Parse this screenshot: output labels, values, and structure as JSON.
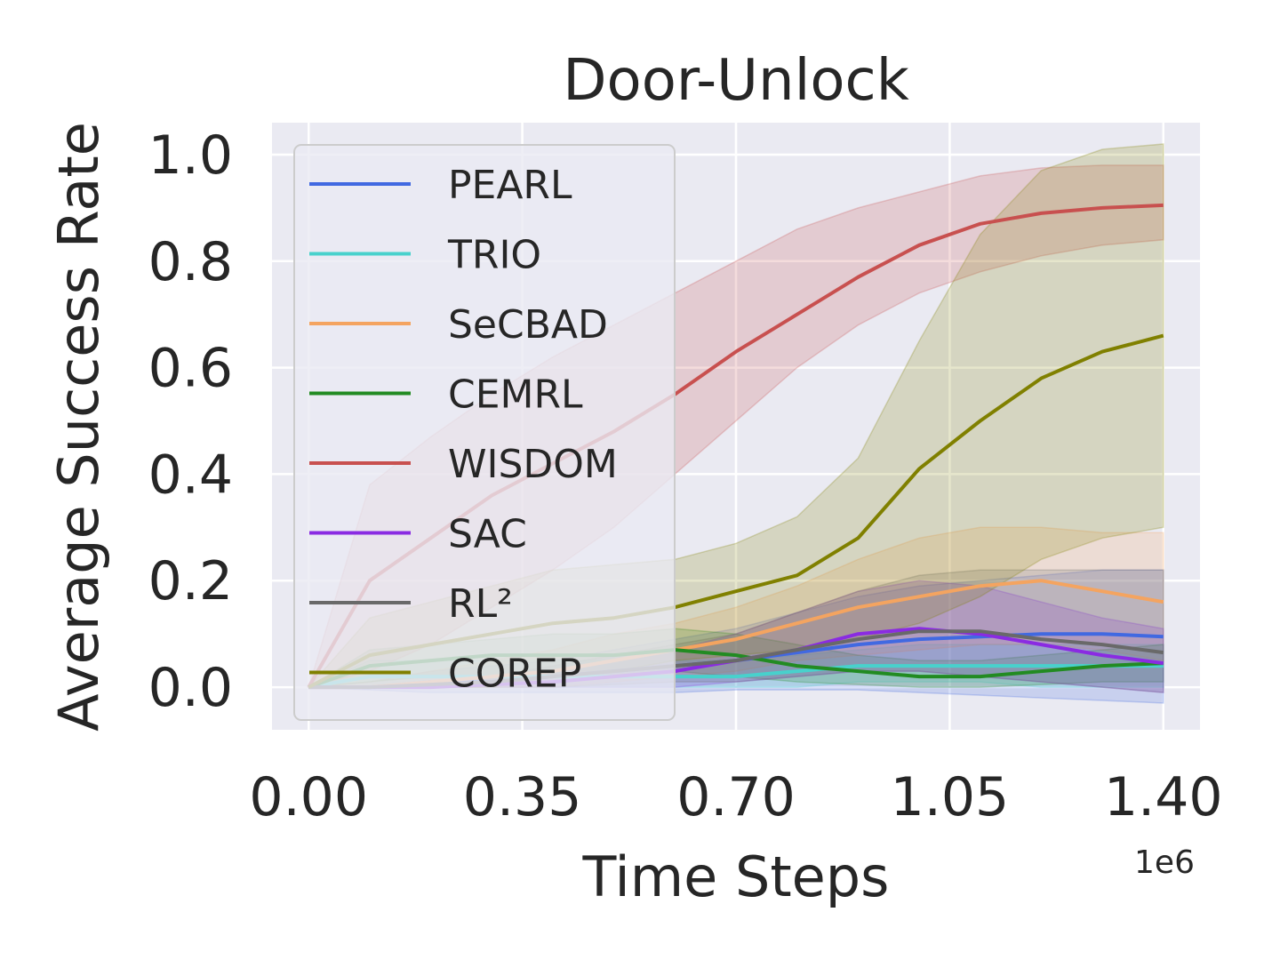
{
  "chart_data": {
    "type": "line",
    "title": "Door-Unlock",
    "xlabel": "Time Steps",
    "ylabel": "Average Success Rate",
    "x_offset_label": "1e6",
    "xlim": [
      -0.06,
      1.4
    ],
    "ylim": [
      -0.08,
      1.06
    ],
    "xticks": [
      0.0,
      0.35,
      0.7,
      1.05,
      1.4
    ],
    "xtick_labels": [
      "0.00",
      "0.35",
      "0.70",
      "1.05",
      "1.40"
    ],
    "yticks": [
      0.0,
      0.2,
      0.4,
      0.6,
      0.8,
      1.0
    ],
    "ytick_labels": [
      "0.0",
      "0.2",
      "0.4",
      "0.6",
      "0.8",
      "1.0"
    ],
    "grid": true,
    "legend_position": "upper-left",
    "x": [
      0.0,
      0.1,
      0.2,
      0.3,
      0.4,
      0.5,
      0.6,
      0.7,
      0.8,
      0.9,
      1.0,
      1.1,
      1.2,
      1.3,
      1.4
    ],
    "series": [
      {
        "name": "PEARL",
        "color": "#4169e1",
        "values": [
          0.0,
          0.0,
          0.01,
          0.01,
          0.02,
          0.03,
          0.04,
          0.05,
          0.065,
          0.08,
          0.09,
          0.095,
          0.1,
          0.1,
          0.095
        ],
        "lower": [
          0.0,
          -0.005,
          -0.01,
          -0.01,
          -0.01,
          -0.01,
          -0.01,
          -0.005,
          -0.005,
          -0.005,
          -0.01,
          -0.015,
          -0.02,
          -0.025,
          -0.03
        ],
        "upper": [
          0.0,
          0.01,
          0.03,
          0.04,
          0.05,
          0.07,
          0.09,
          0.11,
          0.14,
          0.17,
          0.19,
          0.2,
          0.21,
          0.22,
          0.22
        ]
      },
      {
        "name": "TRIO",
        "color": "#48d1cc",
        "values": [
          0.0,
          0.02,
          0.02,
          0.02,
          0.02,
          0.02,
          0.02,
          0.02,
          0.03,
          0.04,
          0.04,
          0.04,
          0.04,
          0.04,
          0.04
        ],
        "lower": [
          0.0,
          0.0,
          0.0,
          0.0,
          0.0,
          0.0,
          0.0,
          0.0,
          0.0,
          0.01,
          0.01,
          0.01,
          0.0,
          0.0,
          0.0
        ],
        "upper": [
          0.0,
          0.05,
          0.05,
          0.05,
          0.05,
          0.05,
          0.05,
          0.05,
          0.06,
          0.07,
          0.08,
          0.08,
          0.08,
          0.08,
          0.08
        ]
      },
      {
        "name": "SeCBAD",
        "color": "#f4a460",
        "values": [
          0.0,
          0.0,
          0.01,
          0.02,
          0.03,
          0.05,
          0.07,
          0.09,
          0.12,
          0.15,
          0.17,
          0.19,
          0.2,
          0.18,
          0.16
        ],
        "lower": [
          0.0,
          0.0,
          0.0,
          0.0,
          0.0,
          0.01,
          0.02,
          0.03,
          0.05,
          0.06,
          0.07,
          0.08,
          0.08,
          0.07,
          0.05
        ],
        "upper": [
          0.0,
          0.01,
          0.03,
          0.05,
          0.07,
          0.1,
          0.12,
          0.15,
          0.19,
          0.24,
          0.28,
          0.3,
          0.3,
          0.29,
          0.29
        ]
      },
      {
        "name": "CEMRL",
        "color": "#228b22",
        "values": [
          0.0,
          0.04,
          0.05,
          0.06,
          0.06,
          0.06,
          0.07,
          0.06,
          0.04,
          0.03,
          0.02,
          0.02,
          0.03,
          0.04,
          0.045
        ],
        "lower": [
          0.0,
          0.01,
          0.02,
          0.02,
          0.02,
          0.02,
          0.03,
          0.02,
          0.01,
          0.005,
          0.0,
          0.0,
          0.005,
          0.01,
          0.01
        ],
        "upper": [
          0.0,
          0.07,
          0.08,
          0.09,
          0.1,
          0.1,
          0.11,
          0.1,
          0.08,
          0.06,
          0.05,
          0.05,
          0.06,
          0.07,
          0.08
        ]
      },
      {
        "name": "WISDOM",
        "color": "#c8504f",
        "values": [
          0.0,
          0.2,
          0.28,
          0.36,
          0.42,
          0.48,
          0.55,
          0.63,
          0.7,
          0.77,
          0.83,
          0.87,
          0.89,
          0.9,
          0.905
        ],
        "lower": [
          0.0,
          0.03,
          0.08,
          0.15,
          0.22,
          0.3,
          0.4,
          0.5,
          0.6,
          0.68,
          0.74,
          0.78,
          0.81,
          0.83,
          0.84
        ],
        "upper": [
          0.0,
          0.38,
          0.47,
          0.55,
          0.62,
          0.68,
          0.74,
          0.8,
          0.86,
          0.9,
          0.93,
          0.96,
          0.975,
          0.98,
          0.98
        ]
      },
      {
        "name": "SAC",
        "color": "#8a2be2",
        "values": [
          0.0,
          0.0,
          0.0,
          0.005,
          0.01,
          0.02,
          0.03,
          0.05,
          0.07,
          0.1,
          0.11,
          0.1,
          0.08,
          0.06,
          0.045
        ],
        "lower": [
          0.0,
          0.0,
          0.0,
          0.0,
          0.0,
          0.0,
          0.0,
          0.01,
          0.02,
          0.03,
          0.03,
          0.02,
          0.01,
          0.0,
          -0.01
        ],
        "upper": [
          0.0,
          0.0,
          0.01,
          0.02,
          0.03,
          0.05,
          0.07,
          0.1,
          0.14,
          0.18,
          0.2,
          0.19,
          0.16,
          0.13,
          0.11
        ]
      },
      {
        "name": "RL²",
        "color": "#696969",
        "values": [
          0.0,
          0.0,
          0.005,
          0.01,
          0.02,
          0.03,
          0.04,
          0.05,
          0.07,
          0.09,
          0.105,
          0.105,
          0.09,
          0.08,
          0.065
        ],
        "lower": [
          0.0,
          0.0,
          0.0,
          0.0,
          0.0,
          0.005,
          0.01,
          0.01,
          0.02,
          0.03,
          0.03,
          0.02,
          0.01,
          0.0,
          -0.01
        ],
        "upper": [
          0.0,
          0.0,
          0.01,
          0.02,
          0.04,
          0.06,
          0.08,
          0.1,
          0.14,
          0.18,
          0.21,
          0.22,
          0.22,
          0.22,
          0.22
        ]
      },
      {
        "name": "COREP",
        "color": "#808000",
        "values": [
          0.0,
          0.06,
          0.08,
          0.1,
          0.12,
          0.13,
          0.15,
          0.18,
          0.21,
          0.28,
          0.41,
          0.5,
          0.58,
          0.63,
          0.66
        ],
        "lower": [
          0.0,
          0.0,
          0.0,
          0.0,
          0.02,
          0.03,
          0.05,
          0.06,
          0.07,
          0.09,
          0.12,
          0.17,
          0.24,
          0.28,
          0.3
        ],
        "upper": [
          0.0,
          0.13,
          0.16,
          0.19,
          0.22,
          0.23,
          0.24,
          0.27,
          0.32,
          0.43,
          0.65,
          0.85,
          0.97,
          1.01,
          1.02
        ]
      }
    ]
  }
}
